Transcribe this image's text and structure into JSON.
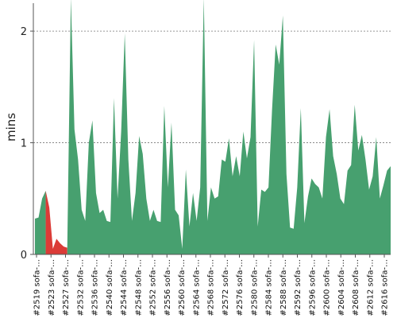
{
  "chart_data": {
    "type": "area",
    "ylabel": "mins",
    "ylim": [
      0,
      2.25
    ],
    "yticks": [
      0,
      1,
      2
    ],
    "grid": "horizontal-dashed",
    "colors": {
      "pass": "#47a06f",
      "fail": "#db3b37",
      "grid": "#777777",
      "axis": "#555555"
    },
    "x_labels": [
      "#2519 sofa-…",
      "#2523 sofa-…",
      "#2527 sofa-…",
      "#2532 sofa-…",
      "#2536 sofa-…",
      "#2540 sofa-…",
      "#2544 sofa-…",
      "#2548 sofa-…",
      "#2552 sofa-…",
      "#2556 sofa-…",
      "#2560 sofa-…",
      "#2564 sofa-…",
      "#2568 sofa-…",
      "#2572 sofa-…",
      "#2576 sofa-…",
      "#2580 sofa-…",
      "#2584 sofa-…",
      "#2588 sofa-…",
      "#2592 sofa-…",
      "#2596 sofa-…",
      "#2600 sofa-…",
      "#2604 sofa-…",
      "#2608 sofa-…",
      "#2612 sofa-…",
      "#2616 sofa-…"
    ],
    "points": [
      {
        "v": 0.32,
        "s": "pass"
      },
      {
        "v": 0.33,
        "s": "pass"
      },
      {
        "v": 0.5,
        "s": "pass"
      },
      {
        "v": 0.57,
        "s": "pass"
      },
      {
        "v": 0.42,
        "s": "fail"
      },
      {
        "v": 0.05,
        "s": "fail"
      },
      {
        "v": 0.14,
        "s": "fail"
      },
      {
        "v": 0.1,
        "s": "fail"
      },
      {
        "v": 0.07,
        "s": "fail"
      },
      {
        "v": 0.06,
        "s": "fail"
      },
      {
        "v": 2.3,
        "s": "pass"
      },
      {
        "v": 1.12,
        "s": "pass"
      },
      {
        "v": 0.85,
        "s": "pass"
      },
      {
        "v": 0.4,
        "s": "pass"
      },
      {
        "v": 0.3,
        "s": "pass"
      },
      {
        "v": 1.0,
        "s": "pass"
      },
      {
        "v": 1.2,
        "s": "pass"
      },
      {
        "v": 0.55,
        "s": "pass"
      },
      {
        "v": 0.37,
        "s": "pass"
      },
      {
        "v": 0.4,
        "s": "pass"
      },
      {
        "v": 0.3,
        "s": "pass"
      },
      {
        "v": 0.29,
        "s": "pass"
      },
      {
        "v": 1.4,
        "s": "pass"
      },
      {
        "v": 0.5,
        "s": "pass"
      },
      {
        "v": 1.1,
        "s": "pass"
      },
      {
        "v": 1.98,
        "s": "pass"
      },
      {
        "v": 0.85,
        "s": "pass"
      },
      {
        "v": 0.3,
        "s": "pass"
      },
      {
        "v": 0.55,
        "s": "pass"
      },
      {
        "v": 1.06,
        "s": "pass"
      },
      {
        "v": 0.9,
        "s": "pass"
      },
      {
        "v": 0.5,
        "s": "pass"
      },
      {
        "v": 0.3,
        "s": "pass"
      },
      {
        "v": 0.4,
        "s": "pass"
      },
      {
        "v": 0.3,
        "s": "pass"
      },
      {
        "v": 0.29,
        "s": "pass"
      },
      {
        "v": 1.33,
        "s": "pass"
      },
      {
        "v": 0.6,
        "s": "pass"
      },
      {
        "v": 1.18,
        "s": "pass"
      },
      {
        "v": 0.4,
        "s": "pass"
      },
      {
        "v": 0.35,
        "s": "pass"
      },
      {
        "v": 0.05,
        "s": "pass"
      },
      {
        "v": 0.76,
        "s": "pass"
      },
      {
        "v": 0.25,
        "s": "pass"
      },
      {
        "v": 0.55,
        "s": "pass"
      },
      {
        "v": 0.3,
        "s": "pass"
      },
      {
        "v": 0.6,
        "s": "pass"
      },
      {
        "v": 2.3,
        "s": "pass"
      },
      {
        "v": 0.3,
        "s": "pass"
      },
      {
        "v": 0.6,
        "s": "pass"
      },
      {
        "v": 0.5,
        "s": "pass"
      },
      {
        "v": 0.52,
        "s": "pass"
      },
      {
        "v": 0.85,
        "s": "pass"
      },
      {
        "v": 0.83,
        "s": "pass"
      },
      {
        "v": 1.04,
        "s": "pass"
      },
      {
        "v": 0.7,
        "s": "pass"
      },
      {
        "v": 0.88,
        "s": "pass"
      },
      {
        "v": 0.7,
        "s": "pass"
      },
      {
        "v": 1.1,
        "s": "pass"
      },
      {
        "v": 0.86,
        "s": "pass"
      },
      {
        "v": 1.05,
        "s": "pass"
      },
      {
        "v": 1.92,
        "s": "pass"
      },
      {
        "v": 0.25,
        "s": "pass"
      },
      {
        "v": 0.58,
        "s": "pass"
      },
      {
        "v": 0.56,
        "s": "pass"
      },
      {
        "v": 0.6,
        "s": "pass"
      },
      {
        "v": 1.3,
        "s": "pass"
      },
      {
        "v": 1.88,
        "s": "pass"
      },
      {
        "v": 1.7,
        "s": "pass"
      },
      {
        "v": 2.14,
        "s": "pass"
      },
      {
        "v": 0.72,
        "s": "pass"
      },
      {
        "v": 0.24,
        "s": "pass"
      },
      {
        "v": 0.23,
        "s": "pass"
      },
      {
        "v": 0.6,
        "s": "pass"
      },
      {
        "v": 1.31,
        "s": "pass"
      },
      {
        "v": 0.28,
        "s": "pass"
      },
      {
        "v": 0.52,
        "s": "pass"
      },
      {
        "v": 0.68,
        "s": "pass"
      },
      {
        "v": 0.63,
        "s": "pass"
      },
      {
        "v": 0.6,
        "s": "pass"
      },
      {
        "v": 0.5,
        "s": "pass"
      },
      {
        "v": 1.05,
        "s": "pass"
      },
      {
        "v": 1.3,
        "s": "pass"
      },
      {
        "v": 0.88,
        "s": "pass"
      },
      {
        "v": 0.72,
        "s": "pass"
      },
      {
        "v": 0.5,
        "s": "pass"
      },
      {
        "v": 0.45,
        "s": "pass"
      },
      {
        "v": 0.75,
        "s": "pass"
      },
      {
        "v": 0.8,
        "s": "pass"
      },
      {
        "v": 1.34,
        "s": "pass"
      },
      {
        "v": 0.93,
        "s": "pass"
      },
      {
        "v": 1.07,
        "s": "pass"
      },
      {
        "v": 0.85,
        "s": "pass"
      },
      {
        "v": 0.58,
        "s": "pass"
      },
      {
        "v": 0.7,
        "s": "pass"
      },
      {
        "v": 1.05,
        "s": "pass"
      },
      {
        "v": 0.5,
        "s": "pass"
      },
      {
        "v": 0.62,
        "s": "pass"
      },
      {
        "v": 0.75,
        "s": "pass"
      },
      {
        "v": 0.79,
        "s": "pass"
      }
    ]
  }
}
